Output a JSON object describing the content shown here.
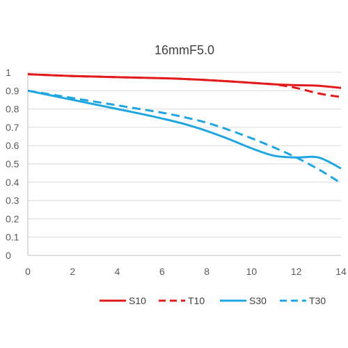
{
  "chart_data": {
    "type": "line",
    "title": "16mmF5.0",
    "xlabel": "",
    "ylabel": "",
    "xlim": [
      0,
      14
    ],
    "ylim": [
      0,
      1
    ],
    "x_ticks": [
      "0",
      "2",
      "4",
      "6",
      "8",
      "10",
      "12",
      "14"
    ],
    "y_ticks": [
      "0",
      "0.1",
      "0.2",
      "0.3",
      "0.4",
      "0.5",
      "0.6",
      "0.7",
      "0.8",
      "0.9",
      "1"
    ],
    "grid": "horizontal",
    "legend_position": "bottom",
    "colors": {
      "red": "#e31a1c",
      "blue": "#1fa6e0",
      "grid": "#d9d9d9",
      "axis": "#bfbfbf"
    },
    "x": [
      0,
      1,
      2,
      3,
      4,
      5,
      6,
      7,
      8,
      9,
      10,
      11,
      12,
      13,
      14
    ],
    "series": [
      {
        "name": "S10",
        "color": "#e31a1c",
        "dash": "solid",
        "values": [
          0.99,
          0.985,
          0.98,
          0.977,
          0.974,
          0.971,
          0.968,
          0.964,
          0.958,
          0.951,
          0.943,
          0.935,
          0.93,
          0.927,
          0.915
        ]
      },
      {
        "name": "T10",
        "color": "#e31a1c",
        "dash": "dashed",
        "values": [
          0.99,
          0.985,
          0.98,
          0.977,
          0.974,
          0.971,
          0.968,
          0.964,
          0.958,
          0.951,
          0.943,
          0.935,
          0.915,
          0.885,
          0.865
        ]
      },
      {
        "name": "S30",
        "color": "#1fa6e0",
        "dash": "solid",
        "values": [
          0.9,
          0.875,
          0.85,
          0.825,
          0.8,
          0.775,
          0.748,
          0.718,
          0.68,
          0.635,
          0.585,
          0.545,
          0.535,
          0.535,
          0.475
        ]
      },
      {
        "name": "T30",
        "color": "#1fa6e0",
        "dash": "dashed",
        "values": [
          0.9,
          0.88,
          0.86,
          0.84,
          0.82,
          0.8,
          0.78,
          0.755,
          0.725,
          0.685,
          0.64,
          0.59,
          0.535,
          0.47,
          0.395
        ]
      }
    ]
  }
}
